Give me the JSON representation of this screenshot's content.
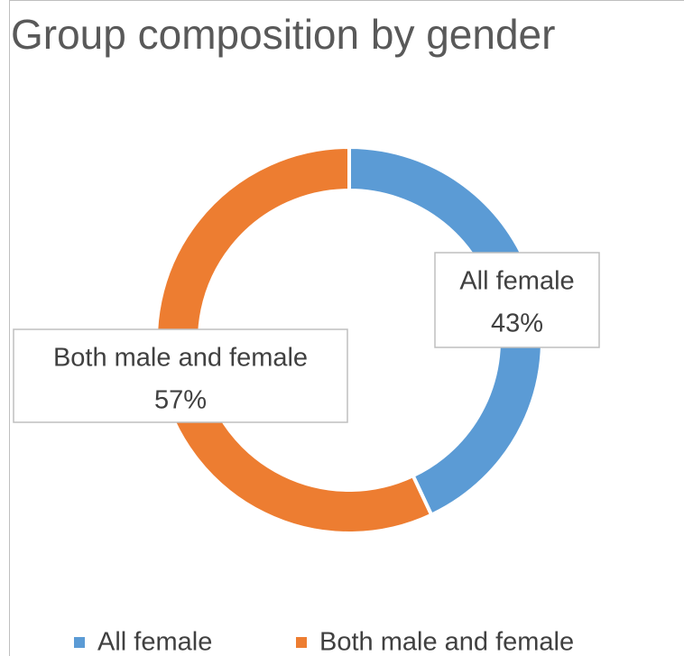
{
  "chart_data": {
    "type": "doughnut",
    "title": "Group composition  by gender",
    "categories": [
      "All female",
      "Both male and female"
    ],
    "values": [
      43,
      57
    ],
    "value_labels": [
      "43%",
      "57%"
    ],
    "colors": [
      "#5b9bd5",
      "#ed7d31"
    ],
    "legend": "bottom"
  }
}
